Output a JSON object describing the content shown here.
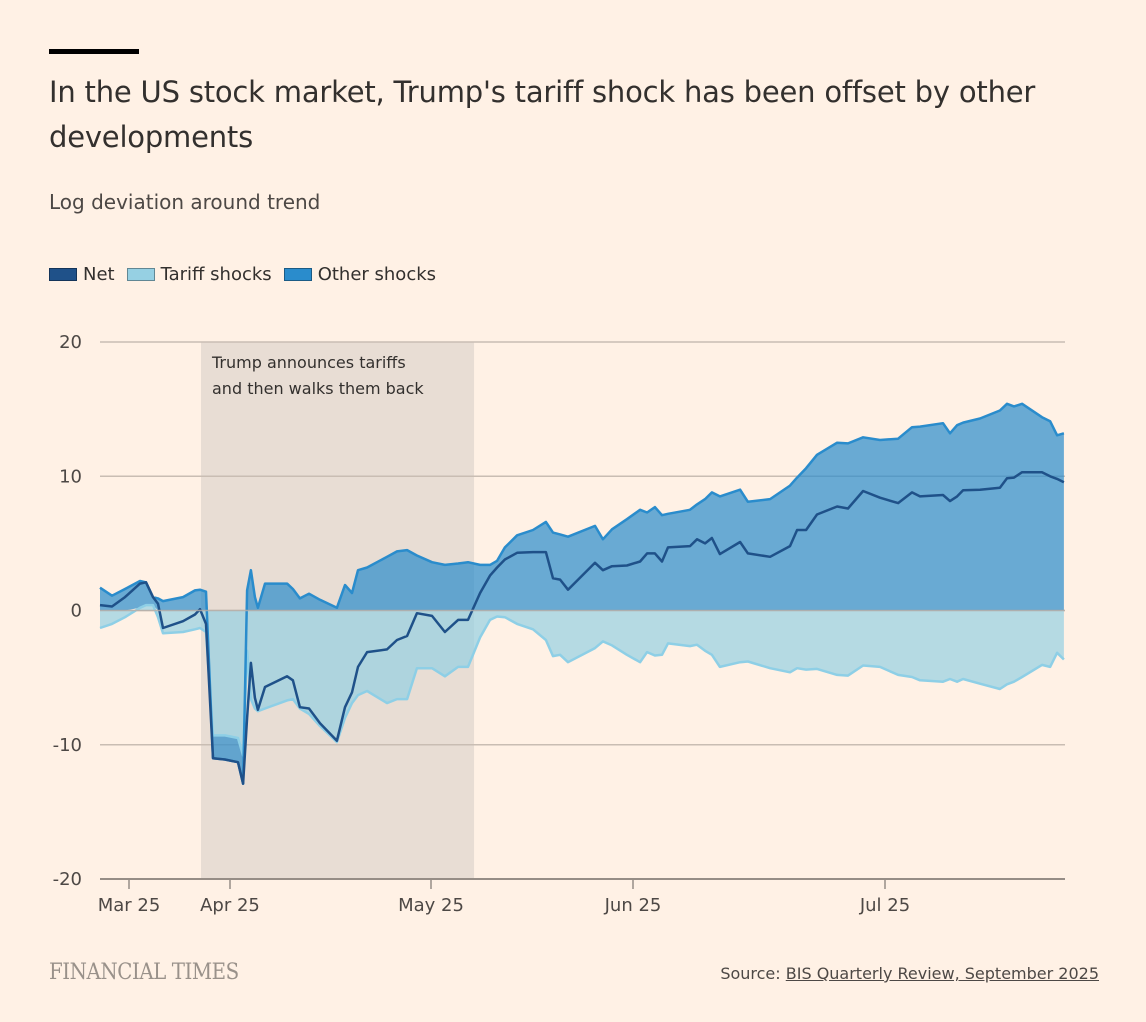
{
  "header": {
    "title": "In the US stock market, Trump's tariff shock has been offset by other developments",
    "subtitle": "Log deviation around trend"
  },
  "legend": [
    {
      "label": "Net",
      "color": "#1f5189"
    },
    {
      "label": "Tariff shocks",
      "color": "#96d0e3"
    },
    {
      "label": "Other shocks",
      "color": "#2a8ccc"
    }
  ],
  "footer": {
    "logo": "FINANCIAL TIMES",
    "source_prefix": "Source: ",
    "source_link": "BIS Quarterly Review, September 2025"
  },
  "chart_data": {
    "type": "area",
    "title": "In the US stock market, Trump's tariff shock has been offset by other developments",
    "ylabel": "Log deviation around trend",
    "xlabel": "",
    "ylim": [
      -20,
      20
    ],
    "yticks": [
      20,
      10,
      0,
      -10,
      -20
    ],
    "x_unit": "month position (0 = Mar 25, 1 = Apr 25, 2 = May 25, 3 = Jun 25, 4 = Jul 25)",
    "xlim": [
      -0.287,
      4.714
    ],
    "xticks": [
      {
        "pos": 0,
        "label": "Mar 25"
      },
      {
        "pos": 1,
        "label": "Apr 25"
      },
      {
        "pos": 2,
        "label": "May 25"
      },
      {
        "pos": 3,
        "label": "Jun 25"
      },
      {
        "pos": 4,
        "label": "Jul 25"
      }
    ],
    "grid": true,
    "legend_position": "top-left",
    "annotation": {
      "text_lines": [
        "Trump announces tariffs",
        "and then walks them back"
      ],
      "range": [
        0.713,
        2.213
      ]
    },
    "x": [
      -0.287,
      -0.168,
      -0.04,
      0.109,
      0.168,
      0.238,
      0.287,
      0.337,
      0.535,
      0.653,
      0.703,
      0.762,
      0.832,
      0.95,
      1.04,
      1.065,
      1.085,
      1.104,
      1.124,
      1.139,
      1.174,
      1.284,
      1.313,
      1.348,
      1.393,
      1.448,
      1.532,
      1.572,
      1.607,
      1.637,
      1.682,
      1.781,
      1.831,
      1.881,
      1.93,
      2.005,
      2.069,
      2.134,
      2.183,
      2.243,
      2.292,
      2.327,
      2.366,
      2.426,
      2.505,
      2.569,
      2.604,
      2.639,
      2.678,
      2.812,
      2.851,
      2.896,
      2.97,
      3.028,
      3.056,
      3.087,
      3.115,
      3.139,
      3.226,
      3.254,
      3.286,
      3.313,
      3.345,
      3.425,
      3.456,
      3.544,
      3.623,
      3.651,
      3.687,
      3.73,
      3.81,
      3.853,
      3.913,
      3.98,
      4.052,
      4.107,
      4.139,
      4.23,
      4.258,
      4.286,
      4.31,
      4.377,
      4.456,
      4.484,
      4.512,
      4.544,
      4.623,
      4.655,
      4.683,
      4.71
    ],
    "series": [
      {
        "name": "Tariff shocks",
        "type": "area",
        "color": "#96d0e3",
        "values": [
          -1.3,
          -1.0,
          -0.5,
          0.2,
          0.4,
          0.4,
          -0.5,
          -1.7,
          -1.6,
          -1.4,
          -1.3,
          -1.6,
          -9.3,
          -9.3,
          -9.5,
          -10.8,
          -3.0,
          -6.6,
          -7.3,
          -7.5,
          -7.3,
          -6.7,
          -6.6,
          -7.3,
          -7.7,
          -8.6,
          -9.8,
          -8.0,
          -6.9,
          -6.3,
          -6.0,
          -6.9,
          -6.6,
          -6.6,
          -4.3,
          -4.3,
          -4.9,
          -4.2,
          -4.2,
          -2.0,
          -0.7,
          -0.45,
          -0.5,
          -1.0,
          -1.4,
          -2.2,
          -3.4,
          -3.3,
          -3.85,
          -2.8,
          -2.3,
          -2.6,
          -3.3,
          -3.85,
          -3.1,
          -3.35,
          -3.3,
          -2.45,
          -2.65,
          -2.55,
          -3.0,
          -3.3,
          -4.2,
          -3.85,
          -3.8,
          -4.3,
          -4.6,
          -4.3,
          -4.4,
          -4.35,
          -4.8,
          -4.85,
          -4.1,
          -4.2,
          -4.8,
          -4.95,
          -5.2,
          -5.3,
          -5.1,
          -5.3,
          -5.1,
          -5.45,
          -5.85,
          -5.5,
          -5.3,
          -4.95,
          -4.05,
          -4.2,
          -3.15,
          -3.65
        ]
      },
      {
        "name": "Other shocks",
        "type": "area",
        "color": "#2a8ccc",
        "values": [
          1.7,
          1.1,
          1.6,
          2.0,
          1.7,
          0.6,
          0.9,
          0.7,
          1.0,
          1.5,
          1.55,
          1.4,
          -1.7,
          -1.8,
          -1.8,
          -2.1,
          1.5,
          3.0,
          1.0,
          0.2,
          2.0,
          2.0,
          1.6,
          0.9,
          1.25,
          0.8,
          0.2,
          1.9,
          1.3,
          3.0,
          3.2,
          4.0,
          4.4,
          4.5,
          4.1,
          3.6,
          3.4,
          3.5,
          3.6,
          3.4,
          3.4,
          3.7,
          4.7,
          5.6,
          6.0,
          6.6,
          5.8,
          5.67,
          5.5,
          6.3,
          5.3,
          6.05,
          6.8,
          7.5,
          7.3,
          7.7,
          7.1,
          7.2,
          7.5,
          7.9,
          8.3,
          8.8,
          8.5,
          9.0,
          8.1,
          8.3,
          9.3,
          9.9,
          10.6,
          11.6,
          12.5,
          12.45,
          12.9,
          12.7,
          12.8,
          13.65,
          13.7,
          13.95,
          13.2,
          13.8,
          14.0,
          14.3,
          14.9,
          15.4,
          15.2,
          15.4,
          14.4,
          14.1,
          13.05,
          13.2
        ]
      },
      {
        "name": "Net",
        "type": "line",
        "color": "#1f5189",
        "values": [
          0.4,
          0.3,
          1.0,
          2.0,
          2.1,
          1.0,
          0.5,
          -1.3,
          -0.8,
          -0.3,
          0.1,
          -1.0,
          -11.0,
          -11.1,
          -11.3,
          -12.9,
          -8.0,
          -3.9,
          -6.5,
          -7.4,
          -5.7,
          -4.9,
          -5.2,
          -7.2,
          -7.3,
          -8.4,
          -9.7,
          -7.2,
          -6.1,
          -4.2,
          -3.1,
          -2.9,
          -2.2,
          -1.9,
          -0.2,
          -0.4,
          -1.6,
          -0.7,
          -0.7,
          1.3,
          2.6,
          3.2,
          3.8,
          4.3,
          4.35,
          4.35,
          2.4,
          2.3,
          1.55,
          3.55,
          3.0,
          3.3,
          3.35,
          3.65,
          4.25,
          4.25,
          3.65,
          4.7,
          4.8,
          5.3,
          5.0,
          5.4,
          4.2,
          5.1,
          4.25,
          4.0,
          4.8,
          6.0,
          6.0,
          7.15,
          7.75,
          7.6,
          8.9,
          8.4,
          8.0,
          8.8,
          8.5,
          8.6,
          8.15,
          8.5,
          8.95,
          9.0,
          9.15,
          9.85,
          9.9,
          10.3,
          10.3,
          10.0,
          9.8,
          9.55
        ]
      }
    ]
  }
}
